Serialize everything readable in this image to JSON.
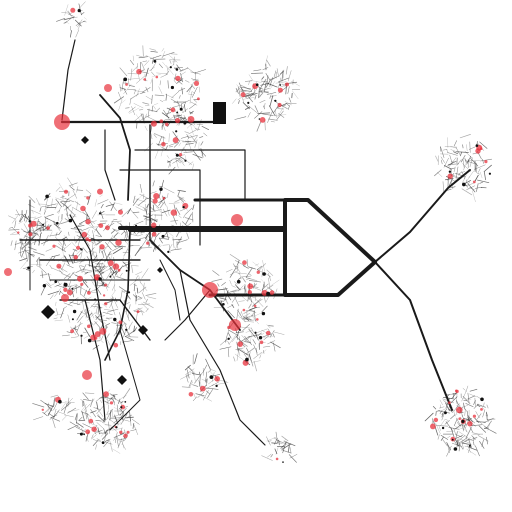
{
  "diagram": {
    "type": "network-graph",
    "colors": {
      "background": "#ffffff",
      "edge": "#1a1a1a",
      "twig": "#3a3a3a",
      "node_highlight": "#e8323c",
      "node_plain": "#111111"
    },
    "clusters": [
      {
        "id": "north",
        "label": ""
      },
      {
        "id": "north-east-small",
        "label": ""
      },
      {
        "id": "central-upper",
        "label": ""
      },
      {
        "id": "west-core",
        "label": ""
      },
      {
        "id": "central-lower",
        "label": ""
      },
      {
        "id": "south-west",
        "label": ""
      },
      {
        "id": "far-east-upper",
        "label": ""
      },
      {
        "id": "far-east-lower",
        "label": ""
      }
    ]
  }
}
